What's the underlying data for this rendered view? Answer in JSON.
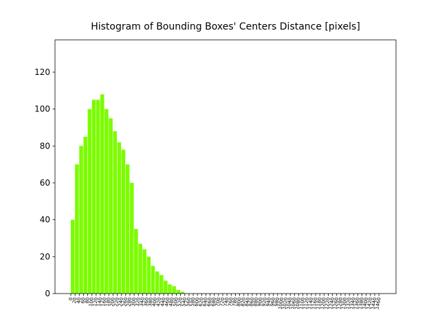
{
  "chart_data": {
    "type": "histogram",
    "title": "Histogram of Bounding Boxes' Centers Distance [pixels]",
    "bins": [
      0,
      20,
      40,
      60,
      80,
      100,
      120,
      140,
      160,
      180,
      200,
      220,
      240,
      260,
      280,
      300,
      320,
      340,
      360,
      380,
      400,
      420,
      440,
      460,
      480,
      500,
      520,
      540
    ],
    "counts": [
      40,
      70,
      80,
      85,
      100,
      105,
      105,
      108,
      100,
      95,
      88,
      82,
      78,
      70,
      60,
      35,
      27,
      24,
      20,
      15,
      12,
      10,
      7,
      5,
      4,
      2,
      1
    ],
    "color": "#7cfc00",
    "xlim": [
      -75,
      1541
    ],
    "ylim": [
      0,
      137.5
    ],
    "yticks": [
      0,
      20,
      40,
      60,
      80,
      100,
      120
    ],
    "xticks": [
      0,
      20,
      40,
      60,
      80,
      100,
      120,
      140,
      160,
      180,
      200,
      220,
      240,
      260,
      280,
      300,
      320,
      340,
      360,
      380,
      400,
      420,
      440,
      460,
      480,
      500,
      520,
      540,
      560,
      580,
      600,
      620,
      640,
      660,
      680,
      700,
      720,
      740,
      760,
      780,
      800,
      820,
      840,
      860,
      880,
      900,
      920,
      940,
      960,
      980,
      1000,
      1020,
      1040,
      1060,
      1080,
      1100,
      1120,
      1140,
      1160,
      1180,
      1200,
      1220,
      1240,
      1260,
      1280,
      1300,
      1320,
      1340,
      1360,
      1380,
      1400,
      1420,
      1440,
      1460
    ]
  }
}
